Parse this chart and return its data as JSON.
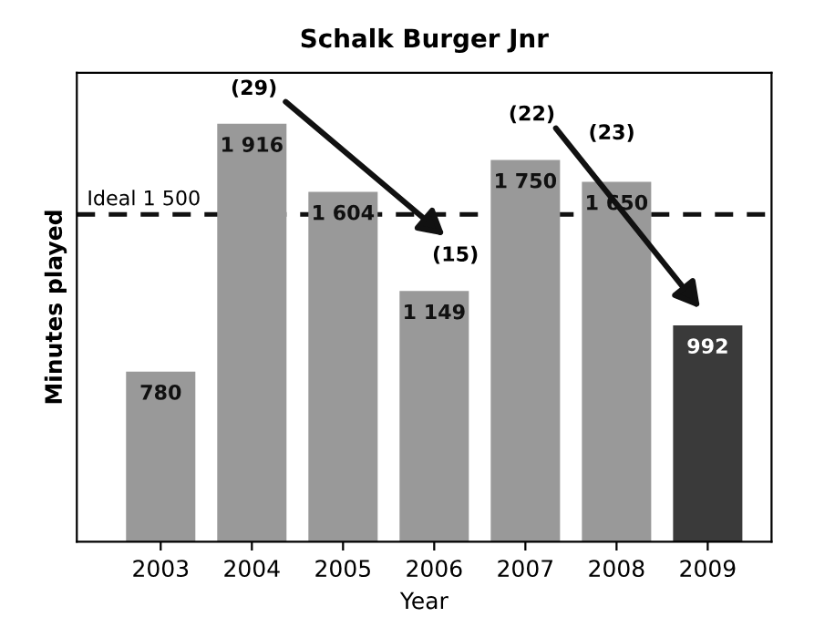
{
  "chart_data": {
    "type": "bar",
    "title": "Schalk Burger Jnr",
    "xlabel": "Year",
    "ylabel": "Minutes played",
    "categories": [
      "2003",
      "2004",
      "2005",
      "2006",
      "2007",
      "2008",
      "2009"
    ],
    "values": [
      780,
      1916,
      1604,
      1149,
      1750,
      1650,
      992
    ],
    "value_labels": [
      "780",
      "1 916",
      "1 604",
      "1 149",
      "1 750",
      "1 650",
      "992"
    ],
    "colors": [
      "#999999",
      "#999999",
      "#999999",
      "#999999",
      "#999999",
      "#999999",
      "#3a3a3a"
    ],
    "ylim": [
      0,
      2150
    ],
    "tick_labels": "x",
    "grid": false,
    "ref_lines": [
      {
        "axis": "y",
        "value": 1500,
        "label": "Ideal 1 500",
        "color": "#111111",
        "line_style": "dashed"
      }
    ],
    "annotations": [
      "(29)",
      "(15)",
      "(22)",
      "(23)"
    ]
  }
}
